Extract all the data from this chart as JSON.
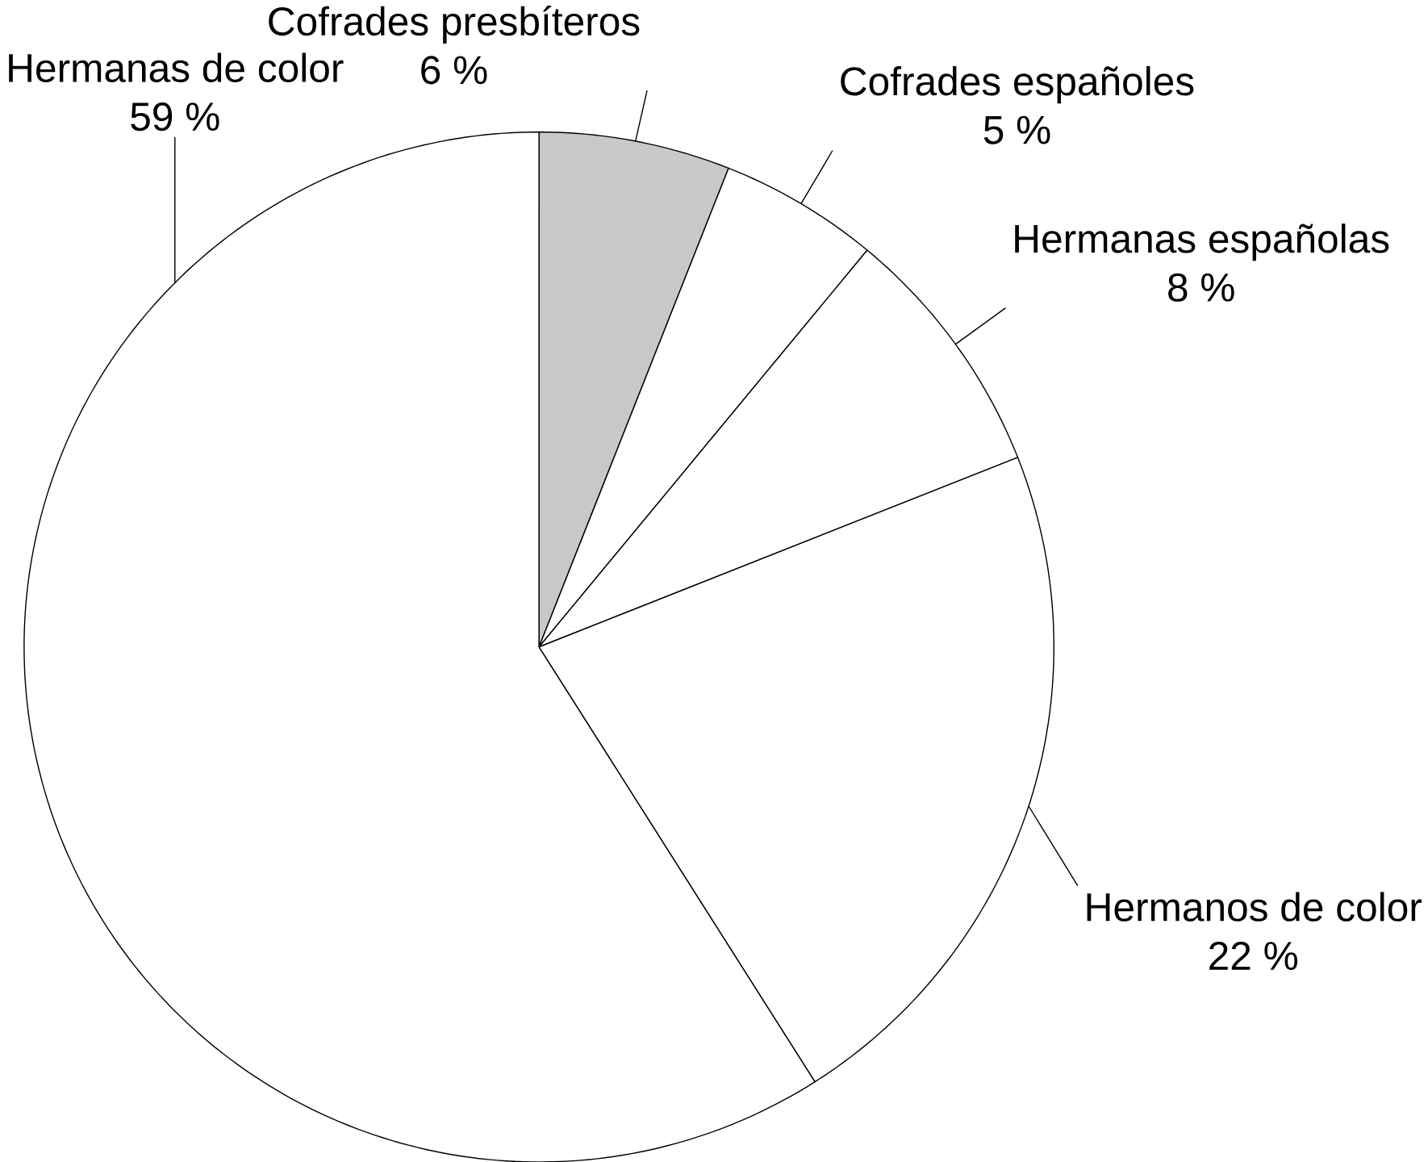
{
  "chart_data": {
    "type": "pie",
    "categories": [
      "Cofrades presbíteros",
      "Cofrades españoles",
      "Hermanas españolas",
      "Hermanos de color",
      "Hermanas de color"
    ],
    "values": [
      6,
      5,
      8,
      22,
      59
    ],
    "colors": [
      "#c8c8c8",
      "#ffffff",
      "#ffffff",
      "#ffffff",
      "#ffffff"
    ],
    "value_labels": [
      "6 %",
      "5 %",
      "8 %",
      "22 %",
      "59 %"
    ]
  }
}
